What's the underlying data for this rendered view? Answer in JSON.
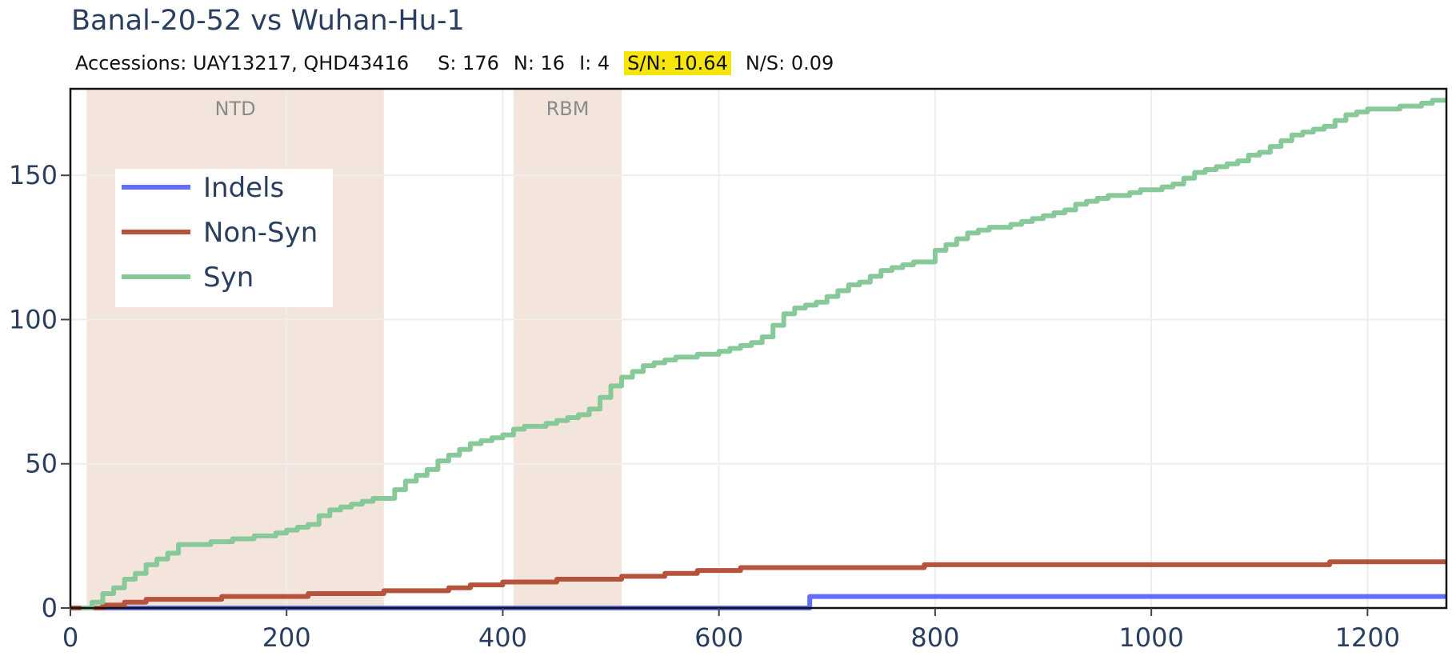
{
  "title": "Banal-20-52 vs Wuhan-Hu-1",
  "stats": {
    "accessions": "Accessions: UAY13217, QHD43416",
    "s": "S: 176",
    "n": "N: 16",
    "i": "I: 4",
    "sn": "S/N: 10.64",
    "ns": "N/S: 0.09",
    "highlight_color": "#f6e50b"
  },
  "chart_data": {
    "type": "line",
    "title": "Banal-20-52 vs Wuhan-Hu-1",
    "xlabel": "",
    "ylabel": "",
    "xlim": [
      0,
      1273
    ],
    "ylim": [
      0,
      180
    ],
    "xticks": [
      0,
      200,
      400,
      600,
      800,
      1000,
      1200
    ],
    "yticks": [
      0,
      50,
      100,
      150
    ],
    "grid": true,
    "legend_position": "top-left",
    "regions": [
      {
        "label": "NTD",
        "start": 15,
        "end": 290,
        "color": "#f3e5dc"
      },
      {
        "label": "RBM",
        "start": 410,
        "end": 510,
        "color": "#f3e5dc"
      }
    ],
    "series": [
      {
        "name": "Indels",
        "color": "#636efa",
        "x": [
          0,
          678,
          684,
          1273
        ],
        "y": [
          0,
          0,
          4,
          4
        ]
      },
      {
        "name": "Non-Syn",
        "color": "#b5533c",
        "x": [
          0,
          30,
          50,
          70,
          140,
          170,
          220,
          250,
          290,
          310,
          350,
          370,
          400,
          420,
          450,
          500,
          510,
          550,
          580,
          620,
          650,
          700,
          750,
          790,
          800,
          850,
          900,
          950,
          1000,
          1050,
          1100,
          1150,
          1165,
          1200,
          1273
        ],
        "y": [
          0,
          1,
          2,
          3,
          4,
          4,
          5,
          5,
          6,
          6,
          7,
          8,
          9,
          9,
          10,
          10,
          11,
          12,
          13,
          14,
          14,
          14,
          14,
          15,
          15,
          15,
          15,
          15,
          15,
          15,
          15,
          15,
          16,
          16,
          16
        ]
      },
      {
        "name": "Syn",
        "color": "#88c999",
        "x": [
          10,
          20,
          30,
          40,
          50,
          60,
          70,
          80,
          90,
          100,
          110,
          120,
          130,
          140,
          150,
          160,
          170,
          180,
          190,
          200,
          210,
          220,
          230,
          240,
          250,
          260,
          270,
          280,
          290,
          300,
          310,
          320,
          330,
          340,
          350,
          360,
          370,
          380,
          390,
          400,
          410,
          420,
          430,
          440,
          450,
          460,
          470,
          480,
          490,
          500,
          510,
          520,
          530,
          540,
          550,
          560,
          570,
          580,
          590,
          600,
          610,
          620,
          630,
          640,
          650,
          660,
          670,
          680,
          690,
          700,
          710,
          720,
          730,
          740,
          750,
          760,
          770,
          780,
          790,
          800,
          810,
          820,
          830,
          840,
          850,
          860,
          870,
          880,
          890,
          900,
          910,
          920,
          930,
          940,
          950,
          960,
          970,
          980,
          990,
          1000,
          1010,
          1020,
          1030,
          1040,
          1050,
          1060,
          1070,
          1080,
          1090,
          1100,
          1110,
          1120,
          1130,
          1140,
          1150,
          1160,
          1170,
          1180,
          1190,
          1200,
          1210,
          1220,
          1230,
          1240,
          1250,
          1260,
          1273
        ],
        "y": [
          0,
          2,
          5,
          7,
          10,
          12,
          15,
          17,
          19,
          22,
          22,
          22,
          23,
          23,
          24,
          24,
          25,
          25,
          26,
          27,
          28,
          29,
          32,
          34,
          35,
          36,
          37,
          38,
          38,
          41,
          44,
          46,
          48,
          51,
          53,
          55,
          57,
          58,
          59,
          60,
          62,
          63,
          63,
          64,
          65,
          66,
          67,
          69,
          73,
          77,
          80,
          82,
          84,
          85,
          86,
          87,
          87,
          88,
          88,
          89,
          90,
          91,
          92,
          94,
          98,
          102,
          104,
          105,
          106,
          108,
          110,
          112,
          113,
          115,
          117,
          118,
          119,
          120,
          120,
          124,
          126,
          128,
          130,
          131,
          132,
          132,
          133,
          134,
          135,
          136,
          137,
          138,
          140,
          141,
          142,
          143,
          143,
          144,
          145,
          145,
          146,
          147,
          149,
          151,
          152,
          153,
          154,
          155,
          157,
          158,
          160,
          162,
          164,
          165,
          166,
          167,
          169,
          171,
          172,
          173,
          173,
          173,
          174,
          174,
          175,
          176,
          176
        ]
      }
    ]
  }
}
